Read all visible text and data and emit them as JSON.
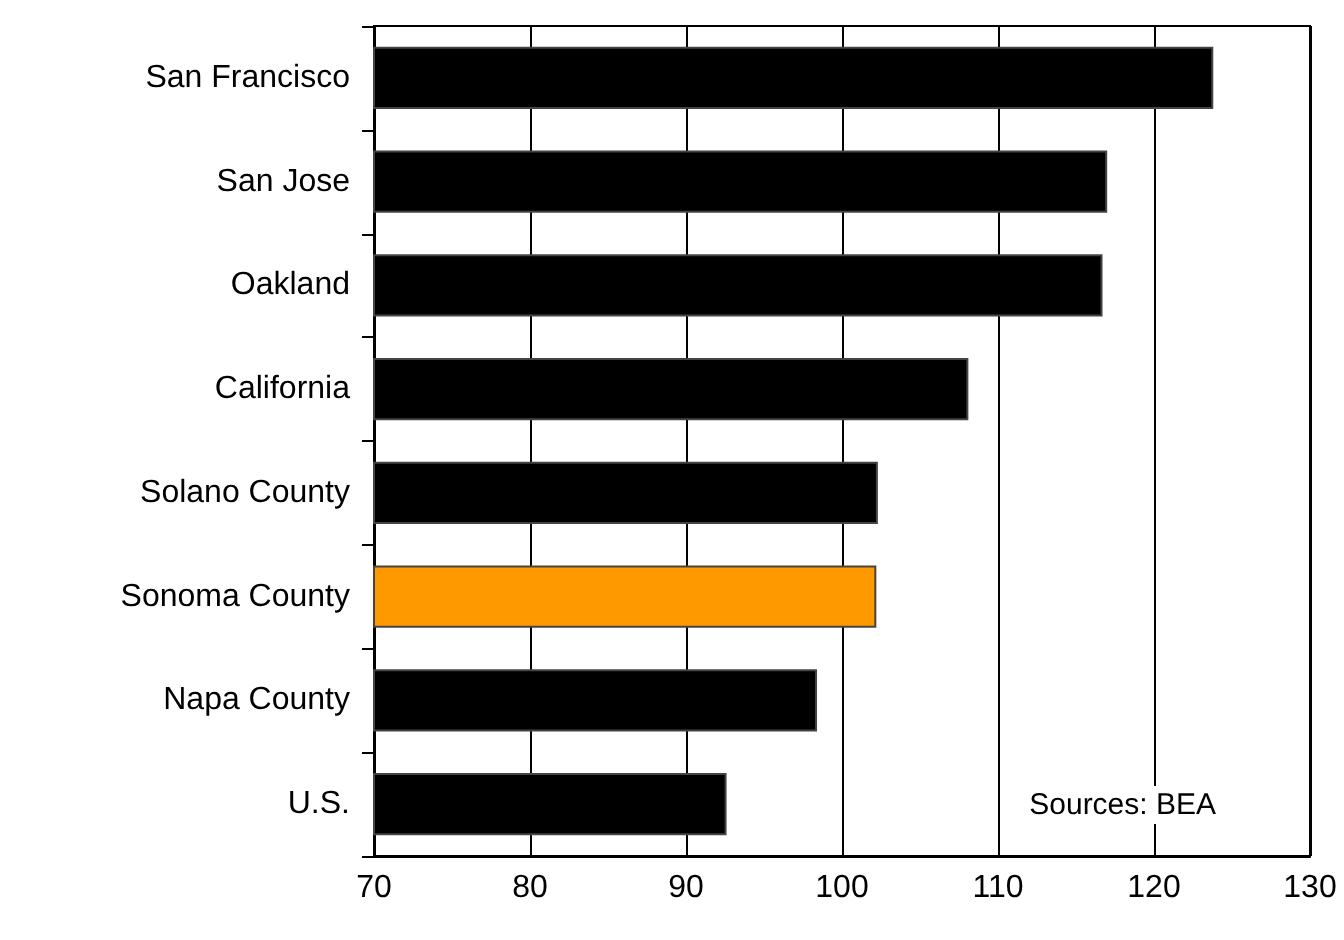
{
  "chart_data": {
    "type": "bar",
    "orientation": "horizontal",
    "categories": [
      "San Francisco",
      "San Jose",
      "Oakland",
      "California",
      "Solano County",
      "Sonoma County",
      "Napa County",
      "U.S."
    ],
    "values": [
      123.8,
      117.0,
      116.7,
      108.1,
      102.3,
      102.2,
      98.4,
      92.6
    ],
    "colors": [
      "#000000",
      "#000000",
      "#000000",
      "#000000",
      "#000000",
      "#ff9900",
      "#000000",
      "#000000"
    ],
    "xlim": [
      70,
      130
    ],
    "xticks": [
      70,
      80,
      90,
      100,
      110,
      120,
      130
    ],
    "grid": "x",
    "annotations": [
      "Sources: BEA"
    ]
  }
}
